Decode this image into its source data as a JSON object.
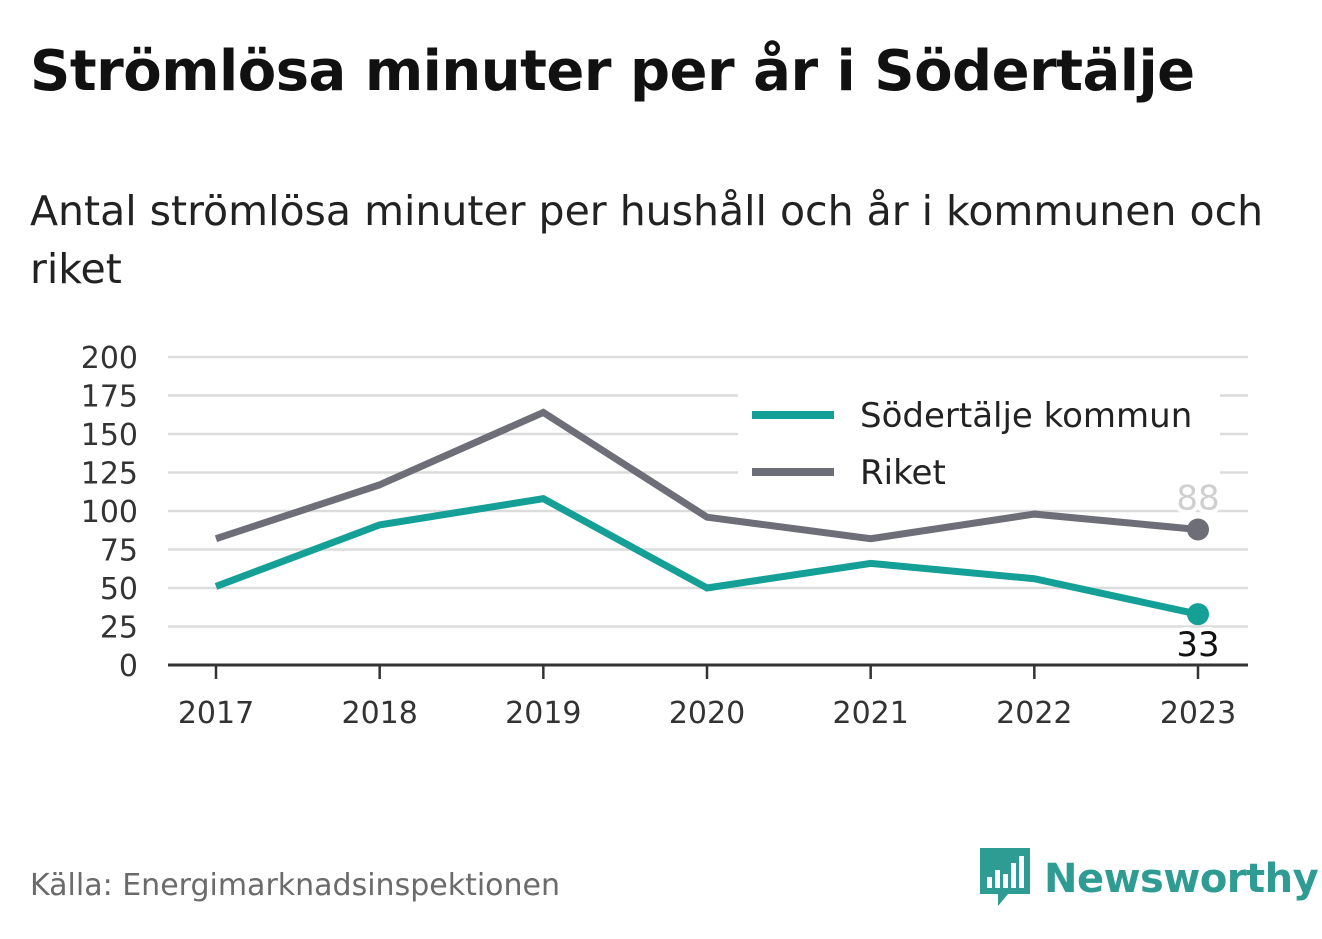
{
  "title": "Strömlösa minuter per år i Södertälje",
  "subtitle": "Antal strömlösa minuter per hushåll och år i kommunen och riket",
  "source": "Källa: Energimarknadsinspektionen",
  "brand": {
    "name": "Newsworthy",
    "icon": "newsworthy-logo-icon",
    "color": "#2f9c94"
  },
  "chart_data": {
    "type": "line",
    "x": [
      "2017",
      "2018",
      "2019",
      "2020",
      "2021",
      "2022",
      "2023"
    ],
    "yticks": [
      "0",
      "25",
      "50",
      "75",
      "100",
      "125",
      "150",
      "175",
      "200"
    ],
    "ylim": [
      0,
      200
    ],
    "grid": true,
    "legend_position": "top-right",
    "series": [
      {
        "name": "Södertälje kommun",
        "color": "#14a097",
        "values": [
          51,
          91,
          108,
          50,
          66,
          56,
          33
        ],
        "end_label": "33"
      },
      {
        "name": "Riket",
        "color": "#6e6e78",
        "values": [
          82,
          117,
          164,
          96,
          82,
          98,
          88
        ],
        "end_label": "88"
      }
    ]
  }
}
